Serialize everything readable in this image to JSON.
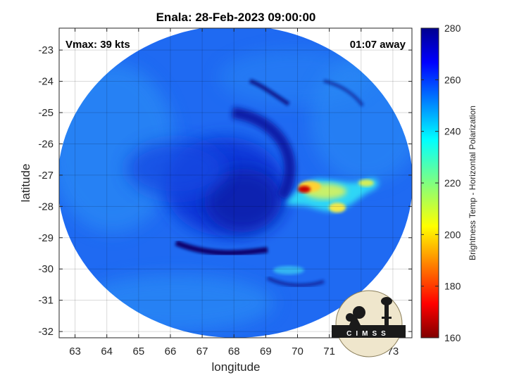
{
  "chart_data": {
    "type": "heatmap",
    "title": "Enala: 28-Feb-2023 09:00:00",
    "xlabel": "longitude",
    "ylabel": "latitude",
    "xlim": [
      62.5,
      73.6
    ],
    "ylim": [
      -32.2,
      -22.3
    ],
    "x_ticks": [
      "63",
      "64",
      "65",
      "66",
      "67",
      "68",
      "69",
      "70",
      "71",
      "72",
      "73"
    ],
    "y_ticks": [
      "-23",
      "-24",
      "-25",
      "-26",
      "-27",
      "-28",
      "-29",
      "-30",
      "-31",
      "-32"
    ],
    "grid": true,
    "colorbar": {
      "label": "Brightness Temp - Horizontal Polarization",
      "range": [
        160,
        280
      ],
      "ticks": [
        "280",
        "260",
        "240",
        "220",
        "200",
        "180",
        "160"
      ],
      "colormap": "jet"
    },
    "annotations": {
      "vmax": "Vmax: 39 kts",
      "time_offset": "01:07 away"
    },
    "features": {
      "storm_center": [
        68.3,
        -27.4
      ],
      "coldest_core": {
        "lon": 70.2,
        "lat": -27.5,
        "value": 165
      }
    }
  },
  "logo": {
    "text": "CIMSS"
  },
  "colors": {
    "background_blue": "#1e5af0",
    "cold_core": "#c80000",
    "warm_band": "#08006c"
  }
}
